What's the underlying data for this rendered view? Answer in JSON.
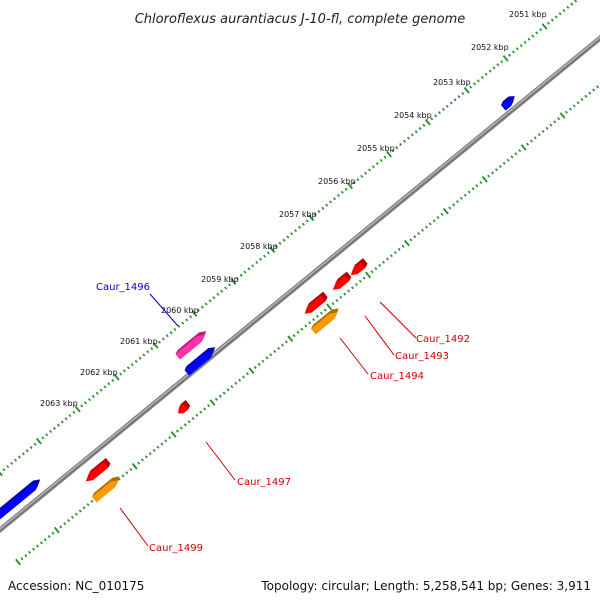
{
  "title": "Chloroflexus aurantiacus J-10-fl, complete genome",
  "footer": {
    "accession": "Accession: NC_010175",
    "summary": "Topology: circular; Length: 5,258,541 bp; Genes: 3,911"
  },
  "scale_ticks": [
    "2051 kbp",
    "2052 kbp",
    "2053 kbp",
    "2054 kbp",
    "2055 kbp",
    "2056 kbp",
    "2057 kbp",
    "2058 kbp",
    "2059 kbp",
    "2060 kbp",
    "2061 kbp",
    "2062 kbp",
    "2063 kbp"
  ],
  "genes": [
    {
      "name": "Caur_1492",
      "label_color": "#cc0000",
      "fill": "#ff0000"
    },
    {
      "name": "Caur_1493",
      "label_color": "#cc0000",
      "fill": "#ff0000"
    },
    {
      "name": "Caur_1494",
      "label_color": "#cc0000",
      "fill": "#ff9900"
    },
    {
      "name": "Caur_1496",
      "label_color": "#0000cc",
      "fill": "#ff33aa"
    },
    {
      "name": "Caur_1497",
      "label_color": "#cc0000",
      "fill": "#ff0000"
    },
    {
      "name": "Caur_1499",
      "label_color": "#cc0000",
      "fill": "#ff9900"
    }
  ],
  "colors": {
    "backbone": "#808080",
    "ruler": "#228b22",
    "forward_gene": "#0000ff",
    "reverse_gene": "#ff0000",
    "orf_orange": "#ff9900",
    "highlight_pink": "#ff33aa"
  }
}
